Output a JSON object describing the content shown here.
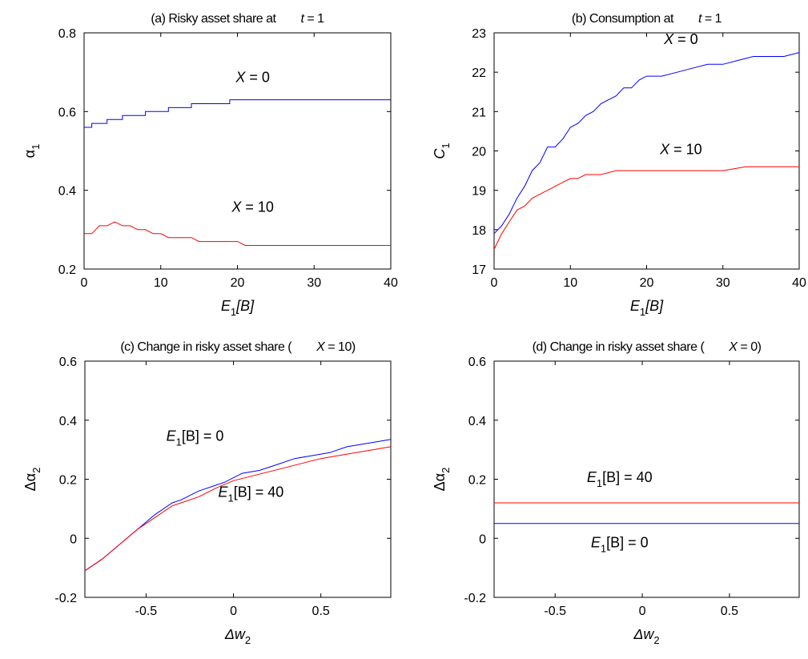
{
  "colors": {
    "blue": "#0000ff",
    "red": "#ff0000",
    "axis": "#000000"
  },
  "chart_data": [
    {
      "type": "line",
      "title_left": "(a) Risky asset share at",
      "title_var": "t",
      "title_rest": " = 1",
      "xlabel": {
        "main": "E",
        "sub": "1",
        "rest": "[B]"
      },
      "ylabel": {
        "main": "α",
        "sub": "1"
      },
      "xlim": [
        0,
        40
      ],
      "ylim": [
        0.2,
        0.8
      ],
      "xticks": [
        0,
        10,
        20,
        30,
        40
      ],
      "xtick_labels": [
        "0",
        "10",
        "20",
        "30",
        "40"
      ],
      "yticks": [
        0.2,
        0.4,
        0.6,
        0.8
      ],
      "ytick_labels": [
        "0.2",
        "0.4",
        "0.6",
        "0.8"
      ],
      "grid": false,
      "series": [
        {
          "name": "X = 0",
          "color": "blue",
          "x": [
            0,
            1,
            1,
            2,
            3,
            3,
            4,
            5,
            5,
            6,
            8,
            8,
            11,
            11,
            14,
            14,
            19,
            19,
            40
          ],
          "y": [
            0.56,
            0.56,
            0.57,
            0.57,
            0.57,
            0.58,
            0.58,
            0.58,
            0.59,
            0.59,
            0.59,
            0.6,
            0.6,
            0.61,
            0.61,
            0.62,
            0.62,
            0.63,
            0.63
          ]
        },
        {
          "name": "X = 10",
          "color": "red",
          "x": [
            0,
            1,
            2,
            3,
            4,
            5,
            6,
            7,
            8,
            9,
            10,
            11,
            12,
            13,
            14,
            15,
            16,
            17,
            18,
            19,
            20,
            21,
            25,
            30,
            40
          ],
          "y": [
            0.29,
            0.29,
            0.31,
            0.31,
            0.32,
            0.31,
            0.31,
            0.3,
            0.3,
            0.29,
            0.29,
            0.28,
            0.28,
            0.28,
            0.28,
            0.27,
            0.27,
            0.27,
            0.27,
            0.27,
            0.27,
            0.26,
            0.26,
            0.26,
            0.26
          ]
        }
      ],
      "annotations": [
        {
          "series": 0,
          "var": "X",
          "rest": " = 0",
          "at": [
            22,
            0.675
          ]
        },
        {
          "series": 1,
          "var": "X",
          "rest": " = 10",
          "at": [
            22,
            0.345
          ]
        }
      ]
    },
    {
      "type": "line",
      "title_left": "(b) Consumption at",
      "title_var": "t",
      "title_rest": " = 1",
      "xlabel": {
        "main": "E",
        "sub": "1",
        "rest": "[B]"
      },
      "ylabel": {
        "main": "C",
        "sub": "1"
      },
      "xlim": [
        0,
        40
      ],
      "ylim": [
        17,
        23
      ],
      "xticks": [
        0,
        10,
        20,
        30,
        40
      ],
      "xtick_labels": [
        "0",
        "10",
        "20",
        "30",
        "40"
      ],
      "yticks": [
        17,
        18,
        19,
        20,
        21,
        22,
        23
      ],
      "ytick_labels": [
        "17",
        "18",
        "19",
        "20",
        "21",
        "22",
        "23"
      ],
      "grid": false,
      "series": [
        {
          "name": "X = 0",
          "color": "blue",
          "x": [
            0,
            1,
            2,
            3,
            4,
            5,
            6,
            7,
            8,
            9,
            10,
            11,
            12,
            13,
            14,
            15,
            16,
            17,
            18,
            19,
            20,
            22,
            24,
            26,
            28,
            30,
            32,
            34,
            36,
            38,
            40
          ],
          "y": [
            17.9,
            18.1,
            18.4,
            18.8,
            19.1,
            19.5,
            19.7,
            20.1,
            20.1,
            20.3,
            20.6,
            20.7,
            20.9,
            21.0,
            21.2,
            21.3,
            21.4,
            21.6,
            21.6,
            21.8,
            21.9,
            21.9,
            22.0,
            22.1,
            22.2,
            22.2,
            22.3,
            22.4,
            22.4,
            22.4,
            22.5
          ]
        },
        {
          "name": "X = 10",
          "color": "red",
          "x": [
            0,
            1,
            2,
            3,
            4,
            5,
            6,
            7,
            8,
            9,
            10,
            11,
            12,
            14,
            16,
            18,
            20,
            25,
            30,
            33,
            35,
            40
          ],
          "y": [
            17.5,
            17.9,
            18.2,
            18.5,
            18.6,
            18.8,
            18.9,
            19.0,
            19.1,
            19.2,
            19.3,
            19.3,
            19.4,
            19.4,
            19.5,
            19.5,
            19.5,
            19.5,
            19.5,
            19.6,
            19.6,
            19.6
          ]
        }
      ],
      "annotations": [
        {
          "series": 0,
          "var": "X",
          "rest": " = 0",
          "at": [
            24.5,
            22.72
          ]
        },
        {
          "series": 1,
          "var": "X",
          "rest": " = 10",
          "at": [
            24.5,
            19.92
          ]
        }
      ]
    },
    {
      "type": "line",
      "title_left": "(c) Change in risky asset share (",
      "title_var": "X",
      "title_rest": " = 10)",
      "xlabel": {
        "main": "Δw",
        "sub": "2",
        "rest": ""
      },
      "ylabel": {
        "main": "Δα",
        "sub": "2"
      },
      "xlim": [
        -0.85,
        0.9
      ],
      "ylim": [
        -0.2,
        0.6
      ],
      "xticks": [
        -0.5,
        0,
        0.5
      ],
      "xtick_labels": [
        "-0.5",
        "0",
        "0.5"
      ],
      "yticks": [
        -0.2,
        0,
        0.2,
        0.4,
        0.6
      ],
      "ytick_labels": [
        "-0.2",
        "0",
        "0.2",
        "0.4",
        "0.6"
      ],
      "grid": false,
      "series": [
        {
          "name": "E1[B] = 0",
          "color": "blue",
          "x": [
            -0.85,
            -0.75,
            -0.65,
            -0.55,
            -0.45,
            -0.35,
            -0.3,
            -0.2,
            -0.1,
            -0.05,
            0.05,
            0.15,
            0.25,
            0.35,
            0.45,
            0.55,
            0.65,
            0.75,
            0.85,
            0.9
          ],
          "y": [
            -0.11,
            -0.07,
            -0.02,
            0.03,
            0.08,
            0.12,
            0.13,
            0.16,
            0.18,
            0.19,
            0.22,
            0.23,
            0.25,
            0.27,
            0.28,
            0.29,
            0.31,
            0.32,
            0.33,
            0.335
          ]
        },
        {
          "name": "E1[B] = 40",
          "color": "red",
          "x": [
            -0.85,
            -0.75,
            -0.65,
            -0.55,
            -0.45,
            -0.35,
            -0.3,
            -0.2,
            -0.1,
            0,
            0.1,
            0.2,
            0.3,
            0.4,
            0.5,
            0.6,
            0.7,
            0.8,
            0.9
          ],
          "y": [
            -0.11,
            -0.07,
            -0.02,
            0.03,
            0.07,
            0.11,
            0.12,
            0.14,
            0.17,
            0.195,
            0.21,
            0.225,
            0.24,
            0.255,
            0.27,
            0.28,
            0.29,
            0.3,
            0.31
          ]
        }
      ],
      "annotations": [
        {
          "series": 0,
          "var": "E",
          "sub": "1",
          "rest": "[B] = 0",
          "at": [
            -0.22,
            0.33
          ]
        },
        {
          "series": 1,
          "var": "E",
          "sub": "1",
          "rest": "[B] = 40",
          "at": [
            0.1,
            0.14
          ]
        }
      ]
    },
    {
      "type": "line",
      "title_left": "(d) Change in risky asset share (",
      "title_var": "X",
      "title_rest": " = 0)",
      "xlabel": {
        "main": "Δw",
        "sub": "2",
        "rest": ""
      },
      "ylabel": {
        "main": "Δα",
        "sub": "2"
      },
      "xlim": [
        -0.85,
        0.9
      ],
      "ylim": [
        -0.2,
        0.6
      ],
      "xticks": [
        -0.5,
        0,
        0.5
      ],
      "xtick_labels": [
        "-0.5",
        "0",
        "0.5"
      ],
      "yticks": [
        -0.2,
        0,
        0.2,
        0.4,
        0.6
      ],
      "ytick_labels": [
        "-0.2",
        "0",
        "0.2",
        "0.4",
        "0.6"
      ],
      "grid": false,
      "series": [
        {
          "name": "E1[B] = 40",
          "color": "red",
          "x": [
            -0.85,
            0.9
          ],
          "y": [
            0.12,
            0.12
          ]
        },
        {
          "name": "E1[B] = 0",
          "color": "blue",
          "x": [
            -0.85,
            0.9
          ],
          "y": [
            0.05,
            0.05
          ]
        }
      ],
      "annotations": [
        {
          "series": 0,
          "var": "E",
          "sub": "1",
          "rest": "[B] = 40",
          "at": [
            -0.13,
            0.19
          ]
        },
        {
          "series": 1,
          "var": "E",
          "sub": "1",
          "rest": "[B] = 0",
          "at": [
            -0.13,
            -0.03
          ]
        }
      ]
    }
  ]
}
